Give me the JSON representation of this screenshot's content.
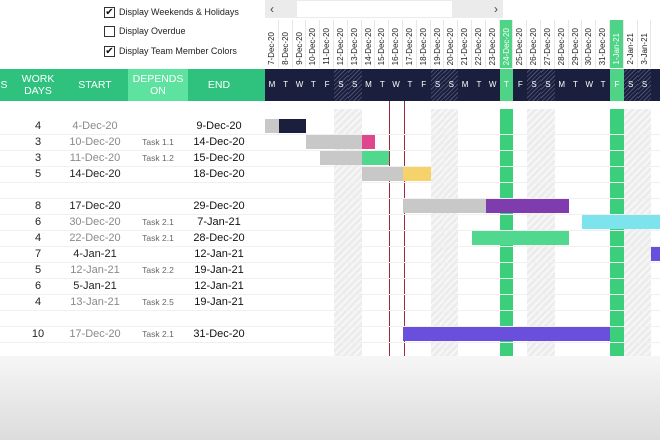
{
  "options": [
    {
      "label": "Display Weekends & Holidays",
      "checked": true
    },
    {
      "label": "Display Overdue",
      "checked": false
    },
    {
      "label": "Display Team Member Colors",
      "checked": true
    }
  ],
  "scroll": {
    "left_icon": "‹",
    "right_icon": "›"
  },
  "header": {
    "col_first": "S",
    "work_days": "WORK DAYS",
    "start": "START",
    "depends_on": "DEPENDS ON",
    "end": "END"
  },
  "dates": [
    "7-Dec-20",
    "8-Dec-20",
    "9-Dec-20",
    "10-Dec-20",
    "11-Dec-20",
    "12-Dec-20",
    "13-Dec-20",
    "14-Dec-20",
    "15-Dec-20",
    "16-Dec-20",
    "17-Dec-20",
    "18-Dec-20",
    "19-Dec-20",
    "20-Dec-20",
    "21-Dec-20",
    "22-Dec-20",
    "23-Dec-20",
    "24-Dec-20",
    "25-Dec-20",
    "26-Dec-20",
    "27-Dec-20",
    "28-Dec-20",
    "29-Dec-20",
    "30-Dec-20",
    "31-Dec-20",
    "1-Jan-21",
    "2-Jan-21",
    "3-Jan-21"
  ],
  "weekdays": [
    "M",
    "T",
    "W",
    "T",
    "F",
    "S",
    "S",
    "M",
    "T",
    "W",
    "T",
    "F",
    "S",
    "S",
    "M",
    "T",
    "W",
    "T",
    "F",
    "S",
    "S",
    "M",
    "T",
    "W",
    "T",
    "F",
    "S",
    "S"
  ],
  "weekend_index": [
    5,
    6,
    12,
    13,
    19,
    20,
    26,
    27
  ],
  "holiday_index": [
    17,
    25
  ],
  "tasks": [
    {
      "days": "4",
      "start": "4-Dec-20",
      "start_gray": true,
      "depends": "",
      "end": "9-Dec-20"
    },
    {
      "days": "3",
      "start": "10-Dec-20",
      "start_gray": true,
      "depends": "Task 1.1",
      "end": "14-Dec-20"
    },
    {
      "days": "3",
      "start": "11-Dec-20",
      "start_gray": true,
      "depends": "Task 1.2",
      "end": "15-Dec-20"
    },
    {
      "days": "5",
      "start": "14-Dec-20",
      "start_gray": false,
      "depends": "",
      "end": "18-Dec-20"
    },
    {
      "days": "",
      "start": "",
      "start_gray": false,
      "depends": "",
      "end": ""
    },
    {
      "days": "8",
      "start": "17-Dec-20",
      "start_gray": false,
      "depends": "",
      "end": "29-Dec-20"
    },
    {
      "days": "6",
      "start": "30-Dec-20",
      "start_gray": true,
      "depends": "Task 2.1",
      "end": "7-Jan-21"
    },
    {
      "days": "4",
      "start": "22-Dec-20",
      "start_gray": true,
      "depends": "Task 2.1",
      "end": "28-Dec-20"
    },
    {
      "days": "7",
      "start": "4-Jan-21",
      "start_gray": false,
      "depends": "",
      "end": "12-Jan-21"
    },
    {
      "days": "5",
      "start": "12-Jan-21",
      "start_gray": true,
      "depends": "Task 2.2",
      "end": "19-Jan-21"
    },
    {
      "days": "6",
      "start": "5-Jan-21",
      "start_gray": false,
      "depends": "",
      "end": "12-Jan-21"
    },
    {
      "days": "4",
      "start": "13-Jan-21",
      "start_gray": true,
      "depends": "Task 2.5",
      "end": "19-Jan-21"
    },
    {
      "days": "",
      "start": "",
      "start_gray": false,
      "depends": "",
      "end": ""
    },
    {
      "days": "10",
      "start": "17-Dec-20",
      "start_gray": true,
      "depends": "Task 2.1",
      "end": "31-Dec-20"
    }
  ],
  "colors": {
    "header_green": "#2ec27e",
    "depends_green": "#5ee2a0",
    "navy": "#1a1f3d",
    "today_line": "#a12a3a",
    "done_gray": "#c8c8c8",
    "pink": "#e0468c",
    "mint": "#4fd88e",
    "yellow": "#f6d26a",
    "purple": "#7e3cae",
    "cyan": "#7de3ec",
    "violet": "#6a4fdd"
  }
}
